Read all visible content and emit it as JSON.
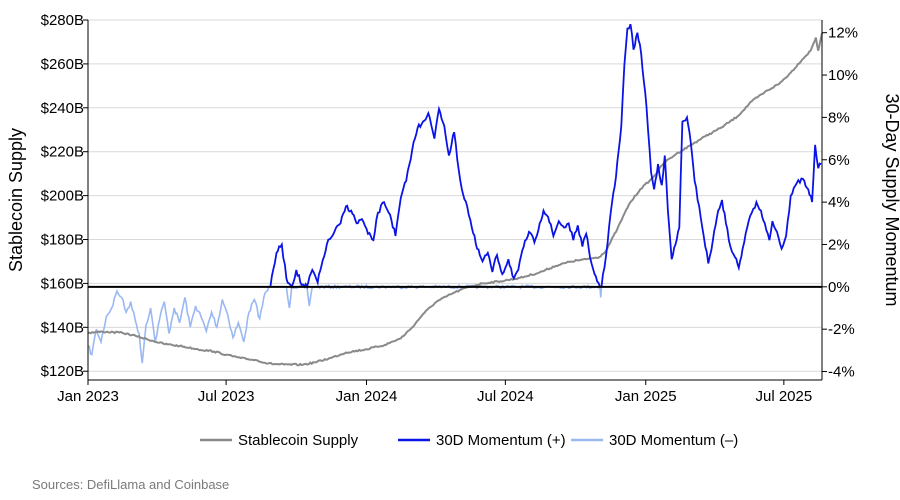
{
  "chart_data": {
    "type": "line",
    "title": "",
    "ylabel_left": "Stablecoin Supply",
    "ylabel_right": "30-Day Supply Momentum",
    "source": "Sources: DefiLlama and Coinbase",
    "ylim_left": [
      116,
      280
    ],
    "ylim_right": [
      -4.4,
      12.6
    ],
    "left_ticks": [
      {
        "value": 120,
        "label": "$120B"
      },
      {
        "value": 140,
        "label": "$140B"
      },
      {
        "value": 160,
        "label": "$160B"
      },
      {
        "value": 180,
        "label": "$180B"
      },
      {
        "value": 200,
        "label": "$200B"
      },
      {
        "value": 220,
        "label": "$220B"
      },
      {
        "value": 240,
        "label": "$240B"
      },
      {
        "value": 260,
        "label": "$260B"
      },
      {
        "value": 280,
        "label": "$280B"
      }
    ],
    "right_ticks": [
      {
        "value": -4,
        "label": "-4%"
      },
      {
        "value": -2,
        "label": "-2%"
      },
      {
        "value": 0,
        "label": "0%"
      },
      {
        "value": 2,
        "label": "2%"
      },
      {
        "value": 4,
        "label": "4%"
      },
      {
        "value": 6,
        "label": "6%"
      },
      {
        "value": 8,
        "label": "8%"
      },
      {
        "value": 10,
        "label": "10%"
      },
      {
        "value": 12,
        "label": "12%"
      }
    ],
    "x_ticks": [
      {
        "value": "2023-01",
        "label": "Jan 2023"
      },
      {
        "value": "2023-07",
        "label": "Jul 2023"
      },
      {
        "value": "2024-01",
        "label": "Jan 2024"
      },
      {
        "value": "2024-07",
        "label": "Jul 2024"
      },
      {
        "value": "2025-01",
        "label": "Jan 2025"
      },
      {
        "value": "2025-07",
        "label": "Jul 2025"
      }
    ],
    "xlim": [
      "2023-01",
      "2025-08-20"
    ],
    "grid": "horizontal",
    "legend_position": "bottom",
    "colors": {
      "supply": "#8a8a8a",
      "momentum_pos": "#0a14e6",
      "momentum_neg": "#9ab8f2",
      "zero_line": "#000000",
      "grid": "#d9d9d9"
    },
    "series": [
      {
        "name": "Stablecoin Supply",
        "axis": "left",
        "points": [
          [
            "2023-01-01",
            137.5
          ],
          [
            "2023-01-20",
            138.0
          ],
          [
            "2023-02-15",
            137.5
          ],
          [
            "2023-03-05",
            136.0
          ],
          [
            "2023-03-20",
            134.5
          ],
          [
            "2023-04-10",
            132.5
          ],
          [
            "2023-05-01",
            131.5
          ],
          [
            "2023-05-25",
            130.0
          ],
          [
            "2023-06-15",
            129.0
          ],
          [
            "2023-07-01",
            127.5
          ],
          [
            "2023-07-20",
            126.0
          ],
          [
            "2023-08-10",
            125.0
          ],
          [
            "2023-08-25",
            123.5
          ],
          [
            "2023-09-15",
            123.0
          ],
          [
            "2023-10-10",
            123.0
          ],
          [
            "2023-10-25",
            124.0
          ],
          [
            "2023-11-15",
            126.0
          ],
          [
            "2023-12-05",
            128.5
          ],
          [
            "2024-01-01",
            130.0
          ],
          [
            "2024-01-25",
            132.0
          ],
          [
            "2024-02-15",
            135.0
          ],
          [
            "2024-03-01",
            140.0
          ],
          [
            "2024-03-15",
            146.0
          ],
          [
            "2024-04-01",
            151.5
          ],
          [
            "2024-04-20",
            155.0
          ],
          [
            "2024-05-10",
            158.0
          ],
          [
            "2024-06-01",
            160.0
          ],
          [
            "2024-06-25",
            161.0
          ],
          [
            "2024-07-20",
            162.5
          ],
          [
            "2024-08-15",
            165.0
          ],
          [
            "2024-09-05",
            168.0
          ],
          [
            "2024-09-25",
            170.0
          ],
          [
            "2024-10-15",
            171.0
          ],
          [
            "2024-11-01",
            172.0
          ],
          [
            "2024-11-10",
            175.0
          ],
          [
            "2024-11-25",
            185.0
          ],
          [
            "2024-12-10",
            196.0
          ],
          [
            "2024-12-25",
            203.0
          ],
          [
            "2025-01-10",
            208.0
          ],
          [
            "2025-01-25",
            215.0
          ],
          [
            "2025-02-10",
            219.0
          ],
          [
            "2025-03-01",
            223.0
          ],
          [
            "2025-03-20",
            227.0
          ],
          [
            "2025-04-10",
            231.0
          ],
          [
            "2025-05-01",
            236.0
          ],
          [
            "2025-05-20",
            243.0
          ],
          [
            "2025-06-10",
            248.0
          ],
          [
            "2025-06-25",
            251.0
          ],
          [
            "2025-07-10",
            256.0
          ],
          [
            "2025-07-25",
            262.0
          ],
          [
            "2025-08-05",
            266.0
          ],
          [
            "2025-08-12",
            272.0
          ],
          [
            "2025-08-15",
            266.0
          ],
          [
            "2025-08-20",
            274.0
          ]
        ]
      },
      {
        "name": "30D Momentum (+)",
        "axis": "right",
        "points": [
          [
            "2023-08-28",
            0.0
          ],
          [
            "2023-09-05",
            1.6
          ],
          [
            "2023-09-12",
            2.0
          ],
          [
            "2023-09-18",
            0.4
          ],
          [
            "2023-09-25",
            0.0
          ],
          [
            "2023-10-01",
            0.8
          ],
          [
            "2023-10-08",
            0.1
          ],
          [
            "2023-10-15",
            0.0
          ],
          [
            "2023-10-22",
            0.8
          ],
          [
            "2023-10-29",
            0.2
          ],
          [
            "2023-11-03",
            1.0
          ],
          [
            "2023-11-10",
            2.0
          ],
          [
            "2023-11-20",
            2.6
          ],
          [
            "2023-11-28",
            3.0
          ],
          [
            "2023-12-05",
            3.8
          ],
          [
            "2023-12-12",
            3.6
          ],
          [
            "2023-12-19",
            3.0
          ],
          [
            "2023-12-26",
            3.2
          ],
          [
            "2024-01-03",
            2.5
          ],
          [
            "2024-01-10",
            2.2
          ],
          [
            "2024-01-16",
            3.5
          ],
          [
            "2024-01-24",
            4.0
          ],
          [
            "2024-02-01",
            3.4
          ],
          [
            "2024-02-08",
            2.4
          ],
          [
            "2024-02-15",
            4.2
          ],
          [
            "2024-02-22",
            5.0
          ],
          [
            "2024-03-01",
            6.5
          ],
          [
            "2024-03-08",
            7.5
          ],
          [
            "2024-03-15",
            7.8
          ],
          [
            "2024-03-22",
            8.2
          ],
          [
            "2024-03-30",
            7.0
          ],
          [
            "2024-04-05",
            8.4
          ],
          [
            "2024-04-12",
            7.6
          ],
          [
            "2024-04-18",
            6.2
          ],
          [
            "2024-04-25",
            7.3
          ],
          [
            "2024-05-01",
            5.5
          ],
          [
            "2024-05-05",
            4.6
          ],
          [
            "2024-05-12",
            3.8
          ],
          [
            "2024-05-18",
            2.8
          ],
          [
            "2024-05-25",
            1.8
          ],
          [
            "2024-06-01",
            1.2
          ],
          [
            "2024-06-08",
            1.6
          ],
          [
            "2024-06-14",
            0.7
          ],
          [
            "2024-06-20",
            1.5
          ],
          [
            "2024-06-27",
            0.6
          ],
          [
            "2024-07-05",
            1.3
          ],
          [
            "2024-07-12",
            0.4
          ],
          [
            "2024-07-18",
            0.8
          ],
          [
            "2024-07-25",
            1.9
          ],
          [
            "2024-08-01",
            2.6
          ],
          [
            "2024-08-08",
            2.1
          ],
          [
            "2024-08-15",
            3.0
          ],
          [
            "2024-08-20",
            3.6
          ],
          [
            "2024-08-26",
            3.3
          ],
          [
            "2024-09-02",
            2.4
          ],
          [
            "2024-09-09",
            3.1
          ],
          [
            "2024-09-16",
            2.8
          ],
          [
            "2024-09-22",
            3.0
          ],
          [
            "2024-09-28",
            2.2
          ],
          [
            "2024-10-04",
            2.9
          ],
          [
            "2024-10-10",
            1.9
          ],
          [
            "2024-10-15",
            2.5
          ],
          [
            "2024-10-20",
            1.4
          ],
          [
            "2024-10-26",
            0.6
          ],
          [
            "2024-10-31",
            0.2
          ],
          [
            "2024-11-02",
            0.0
          ]
        ],
        "segments_after": [
          [
            "2024-11-04",
            0.0
          ],
          [
            "2024-11-10",
            1.5
          ],
          [
            "2024-11-16",
            3.5
          ],
          [
            "2024-11-23",
            5.2
          ],
          [
            "2024-11-30",
            7.6
          ],
          [
            "2024-12-04",
            10.5
          ],
          [
            "2024-12-08",
            12.2
          ],
          [
            "2024-12-12",
            12.4
          ],
          [
            "2024-12-16",
            11.2
          ],
          [
            "2024-12-21",
            12.0
          ],
          [
            "2024-12-26",
            11.0
          ],
          [
            "2025-01-02",
            8.5
          ],
          [
            "2025-01-08",
            5.4
          ],
          [
            "2025-01-12",
            4.6
          ],
          [
            "2025-01-17",
            5.8
          ],
          [
            "2025-01-22",
            4.8
          ],
          [
            "2025-01-26",
            6.2
          ],
          [
            "2025-01-30",
            3.6
          ],
          [
            "2025-02-04",
            1.3
          ],
          [
            "2025-02-09",
            2.0
          ],
          [
            "2025-02-14",
            2.8
          ],
          [
            "2025-02-18",
            7.8
          ],
          [
            "2025-02-24",
            8.0
          ],
          [
            "2025-03-01",
            6.8
          ],
          [
            "2025-03-06",
            5.0
          ],
          [
            "2025-03-12",
            3.8
          ],
          [
            "2025-03-18",
            2.4
          ],
          [
            "2025-03-24",
            1.1
          ],
          [
            "2025-03-30",
            2.2
          ],
          [
            "2025-04-06",
            3.6
          ],
          [
            "2025-04-11",
            4.1
          ],
          [
            "2025-04-16",
            3.0
          ],
          [
            "2025-04-22",
            1.9
          ],
          [
            "2025-04-28",
            1.4
          ],
          [
            "2025-05-03",
            0.9
          ],
          [
            "2025-05-08",
            1.8
          ],
          [
            "2025-05-14",
            2.8
          ],
          [
            "2025-05-20",
            3.5
          ],
          [
            "2025-05-26",
            4.0
          ],
          [
            "2025-06-01",
            3.6
          ],
          [
            "2025-06-06",
            3.0
          ],
          [
            "2025-06-12",
            2.2
          ],
          [
            "2025-06-16",
            3.1
          ],
          [
            "2025-06-22",
            2.6
          ],
          [
            "2025-06-28",
            1.8
          ],
          [
            "2025-07-04",
            2.4
          ],
          [
            "2025-07-10",
            4.3
          ],
          [
            "2025-07-18",
            4.9
          ],
          [
            "2025-07-26",
            5.1
          ],
          [
            "2025-08-02",
            4.6
          ],
          [
            "2025-08-07",
            4.0
          ],
          [
            "2025-08-11",
            6.7
          ],
          [
            "2025-08-15",
            5.6
          ],
          [
            "2025-08-19",
            5.8
          ]
        ]
      },
      {
        "name": "30D Momentum (–)",
        "axis": "right",
        "points": [
          [
            "2023-01-01",
            -2.8
          ],
          [
            "2023-01-06",
            -3.2
          ],
          [
            "2023-01-12",
            -2.0
          ],
          [
            "2023-01-18",
            -2.6
          ],
          [
            "2023-01-25",
            -1.4
          ],
          [
            "2023-02-01",
            -1.0
          ],
          [
            "2023-02-08",
            -0.2
          ],
          [
            "2023-02-14",
            -0.5
          ],
          [
            "2023-02-20",
            -1.2
          ],
          [
            "2023-02-26",
            -0.7
          ],
          [
            "2023-03-04",
            -1.6
          ],
          [
            "2023-03-09",
            -2.2
          ],
          [
            "2023-03-13",
            -3.6
          ],
          [
            "2023-03-18",
            -1.8
          ],
          [
            "2023-03-24",
            -1.0
          ],
          [
            "2023-03-30",
            -2.6
          ],
          [
            "2023-04-05",
            -1.5
          ],
          [
            "2023-04-11",
            -0.7
          ],
          [
            "2023-04-17",
            -2.2
          ],
          [
            "2023-04-24",
            -1.0
          ],
          [
            "2023-05-01",
            -1.7
          ],
          [
            "2023-05-08",
            -0.5
          ],
          [
            "2023-05-15",
            -1.9
          ],
          [
            "2023-05-22",
            -0.9
          ],
          [
            "2023-05-29",
            -1.4
          ],
          [
            "2023-06-05",
            -2.1
          ],
          [
            "2023-06-12",
            -1.2
          ],
          [
            "2023-06-19",
            -1.9
          ],
          [
            "2023-06-26",
            -0.6
          ],
          [
            "2023-07-03",
            -1.3
          ],
          [
            "2023-07-10",
            -2.4
          ],
          [
            "2023-07-17",
            -1.7
          ],
          [
            "2023-07-24",
            -2.6
          ],
          [
            "2023-07-31",
            -1.2
          ],
          [
            "2023-08-07",
            -0.6
          ],
          [
            "2023-08-14",
            -1.5
          ],
          [
            "2023-08-21",
            -0.3
          ],
          [
            "2023-08-28",
            0.0
          ]
        ],
        "segments_after": [
          [
            "2023-09-18",
            0.0
          ],
          [
            "2023-09-22",
            -1.0
          ],
          [
            "2023-09-25",
            0.0
          ],
          [
            "2023-10-15",
            0.0
          ],
          [
            "2023-10-18",
            -0.9
          ],
          [
            "2023-10-22",
            0.0
          ],
          [
            "2024-11-02",
            0.0
          ],
          [
            "2024-11-03",
            -0.5
          ],
          [
            "2024-11-04",
            0.0
          ]
        ]
      }
    ]
  },
  "legend": [
    {
      "label": "Stablecoin Supply",
      "color": "#8a8a8a"
    },
    {
      "label": "30D Momentum (+)",
      "color": "#0a14e6"
    },
    {
      "label": "30D Momentum (–)",
      "color": "#9ab8f2"
    }
  ]
}
